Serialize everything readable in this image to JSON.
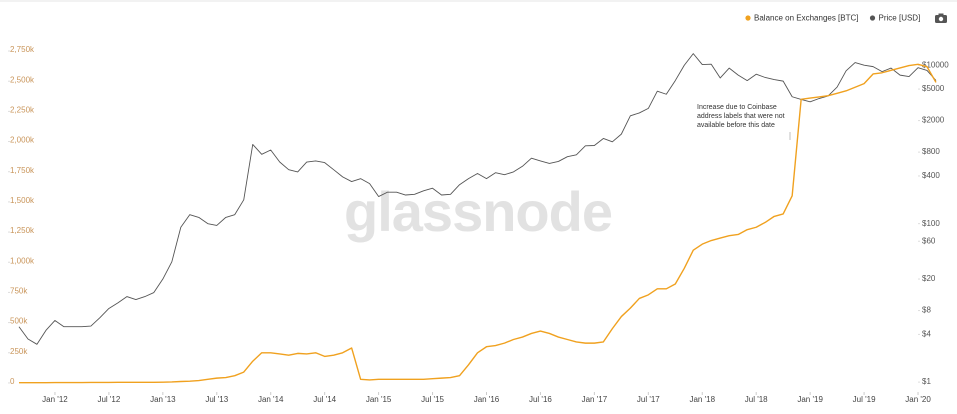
{
  "chart_data": {
    "type": "line",
    "watermark": "glassnode",
    "annotation": [
      "Increase due to Coinbase",
      "address labels that were not",
      "available before this date"
    ],
    "x": [
      "2011-09",
      "2011-10",
      "2011-11",
      "2011-12",
      "2012-01",
      "2012-02",
      "2012-03",
      "2012-04",
      "2012-05",
      "2012-06",
      "2012-07",
      "2012-08",
      "2012-09",
      "2012-10",
      "2012-11",
      "2012-12",
      "2013-01",
      "2013-02",
      "2013-03",
      "2013-04",
      "2013-05",
      "2013-06",
      "2013-07",
      "2013-08",
      "2013-09",
      "2013-10",
      "2013-11",
      "2013-12",
      "2014-01",
      "2014-02",
      "2014-03",
      "2014-04",
      "2014-05",
      "2014-06",
      "2014-07",
      "2014-08",
      "2014-09",
      "2014-10",
      "2014-11",
      "2014-12",
      "2015-01",
      "2015-02",
      "2015-03",
      "2015-04",
      "2015-05",
      "2015-06",
      "2015-07",
      "2015-08",
      "2015-09",
      "2015-10",
      "2015-11",
      "2015-12",
      "2016-01",
      "2016-02",
      "2016-03",
      "2016-04",
      "2016-05",
      "2016-06",
      "2016-07",
      "2016-08",
      "2016-09",
      "2016-10",
      "2016-11",
      "2016-12",
      "2017-01",
      "2017-02",
      "2017-03",
      "2017-04",
      "2017-05",
      "2017-06",
      "2017-07",
      "2017-08",
      "2017-09",
      "2017-10",
      "2017-11",
      "2017-12",
      "2018-01",
      "2018-02",
      "2018-03",
      "2018-04",
      "2018-05",
      "2018-06",
      "2018-07",
      "2018-08",
      "2018-09",
      "2018-10",
      "2018-11",
      "2018-12",
      "2019-01",
      "2019-02",
      "2019-03",
      "2019-04",
      "2019-05",
      "2019-06",
      "2019-07",
      "2019-08",
      "2019-09",
      "2019-10",
      "2019-11",
      "2019-12",
      "2020-01",
      "2020-02",
      "2020-03"
    ],
    "series": [
      {
        "name": "Balance on Exchanges [BTC]",
        "color": "#f0a11f",
        "values": [
          2000,
          2000,
          2000,
          2000,
          3000,
          3000,
          3000,
          3000,
          4000,
          4000,
          4000,
          5000,
          5000,
          5000,
          5000,
          5000,
          6000,
          8000,
          12000,
          15000,
          20000,
          30000,
          40000,
          45000,
          60000,
          90000,
          180000,
          250000,
          250000,
          240000,
          230000,
          245000,
          240000,
          250000,
          220000,
          230000,
          250000,
          290000,
          30000,
          25000,
          30000,
          30000,
          30000,
          30000,
          30000,
          30000,
          35000,
          40000,
          45000,
          60000,
          150000,
          250000,
          300000,
          310000,
          330000,
          360000,
          380000,
          410000,
          430000,
          410000,
          380000,
          360000,
          340000,
          330000,
          330000,
          340000,
          450000,
          550000,
          620000,
          700000,
          730000,
          780000,
          780000,
          820000,
          950000,
          1100000,
          1150000,
          1180000,
          1200000,
          1220000,
          1230000,
          1270000,
          1290000,
          1330000,
          1380000,
          1400000,
          1550000,
          2350000,
          2360000,
          2370000,
          2380000,
          2400000,
          2420000,
          2450000,
          2480000,
          2560000,
          2570000,
          2590000,
          2610000,
          2630000,
          2640000,
          2620000,
          2490000
        ]
      },
      {
        "name": "Price [USD]",
        "color": "#555555",
        "axis": "y2",
        "values": [
          5,
          3.5,
          3,
          4.5,
          6,
          5,
          5,
          5,
          5.1,
          6.5,
          8.5,
          10,
          12,
          11,
          12,
          13.5,
          20,
          33,
          90,
          130,
          120,
          100,
          95,
          120,
          130,
          200,
          1000,
          750,
          850,
          600,
          480,
          450,
          600,
          620,
          590,
          480,
          390,
          340,
          370,
          320,
          220,
          250,
          250,
          230,
          235,
          260,
          280,
          230,
          235,
          310,
          370,
          430,
          370,
          440,
          415,
          450,
          530,
          670,
          620,
          575,
          610,
          700,
          740,
          960,
          970,
          1190,
          1080,
          1350,
          2300,
          2500,
          2850,
          4700,
          4300,
          6400,
          10000,
          14000,
          10200,
          10300,
          6900,
          9200,
          7500,
          6400,
          7700,
          7000,
          6600,
          6300,
          4000,
          3700,
          3450,
          3800,
          4100,
          5300,
          8500,
          10800,
          10000,
          9600,
          8300,
          9200,
          7500,
          7200,
          9300,
          8600,
          6400
        ]
      }
    ],
    "xlim": [
      "2011-08",
      "2020-04"
    ],
    "xticks": [
      {
        "value": "2012-01",
        "label": "Jan '12"
      },
      {
        "value": "2012-07",
        "label": "Jul '12"
      },
      {
        "value": "2013-01",
        "label": "Jan '13"
      },
      {
        "value": "2013-07",
        "label": "Jul '13"
      },
      {
        "value": "2014-01",
        "label": "Jan '14"
      },
      {
        "value": "2014-07",
        "label": "Jul '14"
      },
      {
        "value": "2015-01",
        "label": "Jan '15"
      },
      {
        "value": "2015-07",
        "label": "Jul '15"
      },
      {
        "value": "2016-01",
        "label": "Jan '16"
      },
      {
        "value": "2016-07",
        "label": "Jul '16"
      },
      {
        "value": "2017-01",
        "label": "Jan '17"
      },
      {
        "value": "2017-07",
        "label": "Jul '17"
      },
      {
        "value": "2018-01",
        "label": "Jan '18"
      },
      {
        "value": "2018-07",
        "label": "Jul '18"
      },
      {
        "value": "2019-01",
        "label": "Jan '19"
      },
      {
        "value": "2019-07",
        "label": "Jul '19"
      },
      {
        "value": "2020-01",
        "label": "Jan '20"
      }
    ],
    "ylim": [
      -75000,
      2800000
    ],
    "yticks": [
      0,
      {
        "value": 250000,
        "label": "250k"
      },
      {
        "value": 500000,
        "label": "500k"
      },
      {
        "value": 750000,
        "label": "750k"
      },
      {
        "value": 1000000,
        "label": "1,000k"
      },
      {
        "value": 1250000,
        "label": "1,250k"
      },
      {
        "value": 1500000,
        "label": "1,500k"
      },
      {
        "value": 1750000,
        "label": "1,750k"
      },
      {
        "value": 2000000,
        "label": "2,000k"
      },
      {
        "value": 2250000,
        "label": "2,250k"
      },
      {
        "value": 2500000,
        "label": "2,500k"
      },
      {
        "value": 2750000,
        "label": "2,750k"
      }
    ],
    "y2lim": [
      0.75,
      18000
    ],
    "y2log": true,
    "y2ticks": [
      {
        "value": 1,
        "label": "$1"
      },
      {
        "value": 4,
        "label": "$4"
      },
      {
        "value": 8,
        "label": "$8"
      },
      {
        "value": 20,
        "label": "$20"
      },
      {
        "value": 60,
        "label": "$60"
      },
      {
        "value": 100,
        "label": "$100"
      },
      {
        "value": 400,
        "label": "$400"
      },
      {
        "value": 800,
        "label": "$800"
      },
      {
        "value": 2000,
        "label": "$2000"
      },
      {
        "value": 5000,
        "label": "$5000"
      },
      {
        "value": 10000,
        "label": "$10000"
      }
    ],
    "grid": false,
    "legend": "top-right"
  }
}
